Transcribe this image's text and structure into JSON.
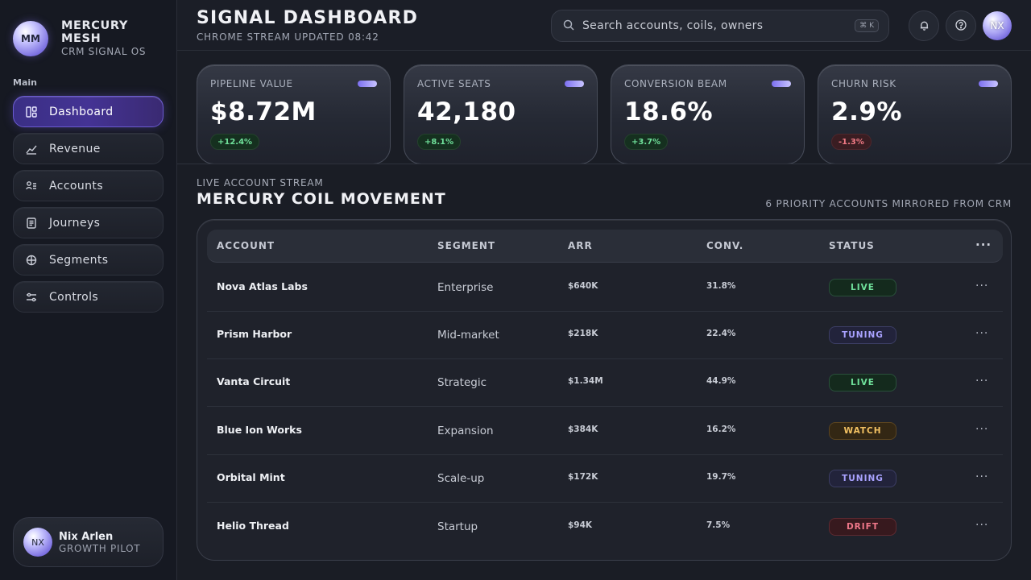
{
  "brand": {
    "logo": "MM",
    "name": "MERCURY MESH",
    "sub": "CRM SIGNAL OS"
  },
  "nav": {
    "section": "Main",
    "items": [
      {
        "label": "Dashboard",
        "icon": "dashboard-icon",
        "active": true
      },
      {
        "label": "Revenue",
        "icon": "revenue-icon"
      },
      {
        "label": "Accounts",
        "icon": "accounts-icon"
      },
      {
        "label": "Journeys",
        "icon": "journeys-icon"
      },
      {
        "label": "Segments",
        "icon": "segments-icon"
      },
      {
        "label": "Controls",
        "icon": "controls-icon"
      }
    ]
  },
  "profile": {
    "initials": "NX",
    "name": "Nix Arlen",
    "role": "GROWTH PILOT"
  },
  "header": {
    "title": "SIGNAL DASHBOARD",
    "subtitle": "CHROME STREAM UPDATED 08:42",
    "search_placeholder": "Search accounts, coils, owners",
    "shortcut": "⌘ K",
    "avatar": "NX"
  },
  "kpis": [
    {
      "label": "PIPELINE VALUE",
      "value": "$8.72M",
      "delta": "+12.4%",
      "trend": "up"
    },
    {
      "label": "ACTIVE SEATS",
      "value": "42,180",
      "delta": "+8.1%",
      "trend": "up"
    },
    {
      "label": "CONVERSION BEAM",
      "value": "18.6%",
      "delta": "+3.7%",
      "trend": "up"
    },
    {
      "label": "CHURN RISK",
      "value": "2.9%",
      "delta": "-1.3%",
      "trend": "down"
    }
  ],
  "stream": {
    "eyebrow": "LIVE ACCOUNT STREAM",
    "title": "MERCURY COIL MOVEMENT",
    "note": "6 PRIORITY ACCOUNTS MIRRORED FROM CRM"
  },
  "table": {
    "headers": {
      "account": "ACCOUNT",
      "segment": "SEGMENT",
      "arr": "ARR",
      "conv": "CONV.",
      "status": "STATUS",
      "more": "···"
    },
    "rows": [
      {
        "account": "Nova Atlas Labs",
        "segment": "Enterprise",
        "arr": "$640K",
        "conv": "31.8%",
        "status": "LIVE",
        "more": "···"
      },
      {
        "account": "Prism Harbor",
        "segment": "Mid-market",
        "arr": "$218K",
        "conv": "22.4%",
        "status": "TUNING",
        "more": "···"
      },
      {
        "account": "Vanta Circuit",
        "segment": "Strategic",
        "arr": "$1.34M",
        "conv": "44.9%",
        "status": "LIVE",
        "more": "···"
      },
      {
        "account": "Blue Ion Works",
        "segment": "Expansion",
        "arr": "$384K",
        "conv": "16.2%",
        "status": "WATCH",
        "more": "···"
      },
      {
        "account": "Orbital Mint",
        "segment": "Scale-up",
        "arr": "$172K",
        "conv": "19.7%",
        "status": "TUNING",
        "more": "···"
      },
      {
        "account": "Helio Thread",
        "segment": "Startup",
        "arr": "$94K",
        "conv": "7.5%",
        "status": "DRIFT",
        "more": "···"
      }
    ]
  },
  "colors": {
    "accent": "#6a5ad0",
    "live": "#6fe09a",
    "tuning": "#a9a2ff",
    "watch": "#f2c162",
    "drift": "#f0788a"
  }
}
